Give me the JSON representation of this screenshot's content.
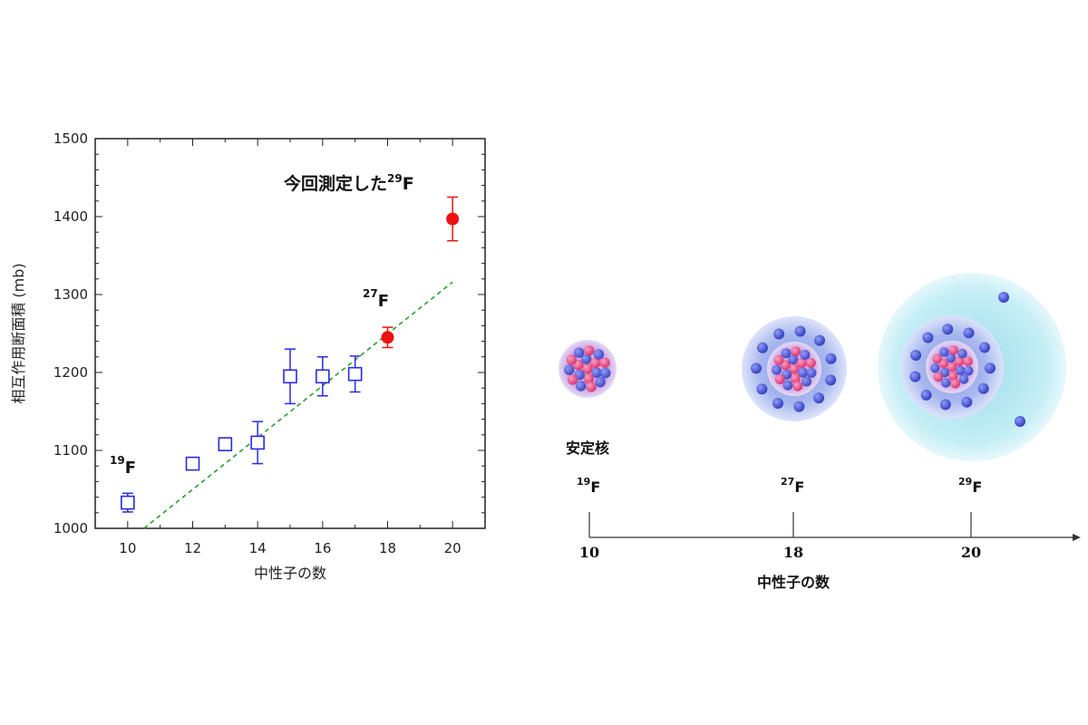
{
  "chart_data": {
    "type": "scatter",
    "xlabel": "中性子の数",
    "ylabel": "相互作用断面積 (mb)",
    "xlim": [
      9,
      21
    ],
    "ylim": [
      1000,
      1500
    ],
    "x_ticks": [
      "10",
      "12",
      "14",
      "16",
      "18",
      "20"
    ],
    "y_ticks": [
      "1000",
      "1100",
      "1200",
      "1300",
      "1400",
      "1500"
    ],
    "grid": false,
    "series": [
      {
        "marker": "open-square",
        "color": "#2a2ae0",
        "points": [
          {
            "x": 10,
            "y": 1033,
            "err": 12
          },
          {
            "x": 12,
            "y": 1083,
            "err": 7
          },
          {
            "x": 13,
            "y": 1108,
            "err": 7
          },
          {
            "x": 14,
            "y": 1110,
            "err": 27
          },
          {
            "x": 15,
            "y": 1195,
            "err": 35
          },
          {
            "x": 16,
            "y": 1195,
            "err": 25
          },
          {
            "x": 17,
            "y": 1198,
            "err": 23
          }
        ]
      },
      {
        "marker": "filled-circle",
        "color": "#ee1111",
        "points": [
          {
            "x": 18,
            "y": 1245,
            "err": 13
          },
          {
            "x": 20,
            "y": 1397,
            "err": 28
          }
        ]
      }
    ],
    "trendline": {
      "style": "dashed",
      "color": "#2e9e2e",
      "x": [
        10.5,
        20
      ],
      "y": [
        1000,
        1316
      ]
    },
    "annotations": {
      "f19": {
        "sup": "19",
        "text": "F"
      },
      "f27": {
        "sup": "27",
        "text": "F"
      },
      "measured": {
        "text": "今回測定した",
        "sup": "29",
        "tail": "F"
      }
    }
  },
  "diagram": {
    "nuclei": [
      {
        "sup": "19",
        "name": "F",
        "tick": "10",
        "caption": "安定核"
      },
      {
        "sup": "27",
        "name": "F",
        "tick": "18"
      },
      {
        "sup": "29",
        "name": "F",
        "tick": "20"
      }
    ],
    "axis_title": "中性子の数",
    "colors": {
      "proton": "#e0487a",
      "neutron": "#4c5ad8",
      "halo": "#bfeaf2"
    }
  }
}
